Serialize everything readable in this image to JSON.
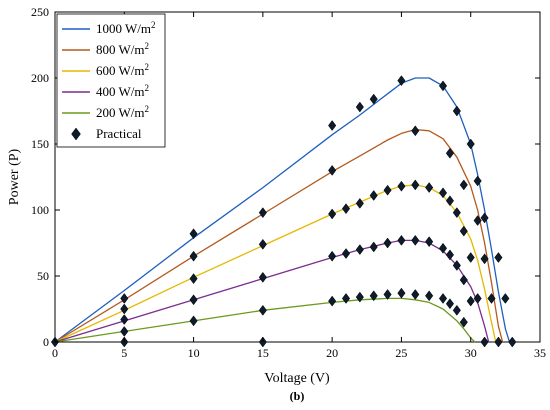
{
  "chart_data": {
    "type": "line",
    "xlabel": "Voltage (V)",
    "ylabel": "Power (P)",
    "xlim": [
      0,
      35
    ],
    "ylim": [
      0,
      250
    ],
    "xticks": [
      0,
      5,
      10,
      15,
      20,
      25,
      30,
      35
    ],
    "yticks": [
      0,
      50,
      100,
      150,
      200,
      250
    ],
    "grid": false,
    "legend_position": "top-left",
    "caption": "(b)",
    "series": [
      {
        "name_main": "1000 W/m",
        "name_sup": "2",
        "color": "#1f5fbf",
        "x": [
          0,
          5,
          10,
          15,
          20,
          22,
          24,
          25,
          26,
          27,
          28,
          29,
          30,
          30.5,
          31,
          31.5,
          32,
          32.5,
          32.8
        ],
        "y": [
          0,
          39,
          79,
          117,
          157,
          172,
          188,
          196,
          200,
          200,
          194,
          178,
          150,
          127,
          100,
          70,
          38,
          10,
          0
        ]
      },
      {
        "name_main": "800 W/m",
        "name_sup": "2",
        "color": "#b35a1f",
        "x": [
          0,
          5,
          10,
          15,
          20,
          22,
          24,
          25,
          26,
          27,
          28,
          29,
          30,
          30.5,
          31,
          31.5,
          32,
          32.3
        ],
        "y": [
          0,
          32,
          65,
          97,
          129,
          141,
          153,
          158,
          161,
          160,
          154,
          140,
          118,
          100,
          75,
          45,
          12,
          0
        ]
      },
      {
        "name_main": "600 W/m",
        "name_sup": "2",
        "color": "#e6b800",
        "x": [
          0,
          5,
          10,
          15,
          20,
          22,
          24,
          25,
          26,
          27,
          28,
          29,
          30,
          30.5,
          31,
          31.5,
          31.8
        ],
        "y": [
          0,
          24,
          49,
          73,
          97,
          106,
          115,
          118,
          119,
          117,
          111,
          98,
          78,
          62,
          40,
          15,
          0
        ]
      },
      {
        "name_main": "400 W/m",
        "name_sup": "2",
        "color": "#7b2d8e",
        "x": [
          0,
          5,
          10,
          15,
          20,
          22,
          24,
          25,
          26,
          27,
          28,
          29,
          30,
          30.5,
          31,
          31.3
        ],
        "y": [
          0,
          16,
          32,
          48,
          64,
          70,
          75,
          77,
          77,
          75,
          69,
          58,
          42,
          30,
          12,
          0
        ]
      },
      {
        "name_main": "200 W/m",
        "name_sup": "2",
        "color": "#6a9a1f",
        "x": [
          0,
          5,
          10,
          15,
          20,
          22,
          24,
          25,
          26,
          27,
          28,
          29,
          29.5,
          30,
          30.3
        ],
        "y": [
          0,
          8,
          16,
          24,
          30,
          32,
          33,
          33,
          32,
          30,
          25,
          16,
          10,
          3,
          0
        ]
      }
    ],
    "practical": {
      "name": "Practical",
      "x": [
        0,
        5,
        10,
        15,
        20,
        22,
        23,
        25,
        28,
        29,
        30,
        30.5,
        31,
        32,
        32.5,
        33,
        5,
        10,
        15,
        20,
        26,
        28.5,
        29.5,
        30.5,
        31,
        31.5,
        32,
        5,
        10,
        15,
        20,
        21,
        22,
        23,
        24,
        25,
        26,
        27,
        28,
        28.5,
        29,
        29.5,
        30,
        30.5,
        31,
        5,
        10,
        15,
        20,
        21,
        22,
        23,
        24,
        25,
        26,
        27,
        28,
        28.5,
        29,
        29.5,
        30,
        5,
        10,
        15,
        20,
        21,
        22,
        23,
        24,
        25,
        26,
        27,
        28,
        28.5,
        29,
        29.5
      ],
      "y": [
        0,
        33,
        82,
        98,
        164,
        178,
        184,
        198,
        194,
        175,
        150,
        122,
        94,
        64,
        33,
        0,
        25,
        65,
        74,
        130,
        160,
        143,
        119,
        92,
        63,
        33,
        0,
        17,
        48,
        49,
        97,
        101,
        105,
        111,
        115,
        118,
        119,
        117,
        113,
        107,
        98,
        84,
        64,
        33,
        0,
        8,
        32,
        24,
        65,
        67,
        70,
        72,
        75,
        77,
        77,
        76,
        71,
        66,
        58,
        47,
        31,
        0,
        16,
        0,
        31,
        33,
        34,
        35,
        36,
        37,
        36,
        35,
        33,
        29,
        24,
        15
      ]
    }
  }
}
